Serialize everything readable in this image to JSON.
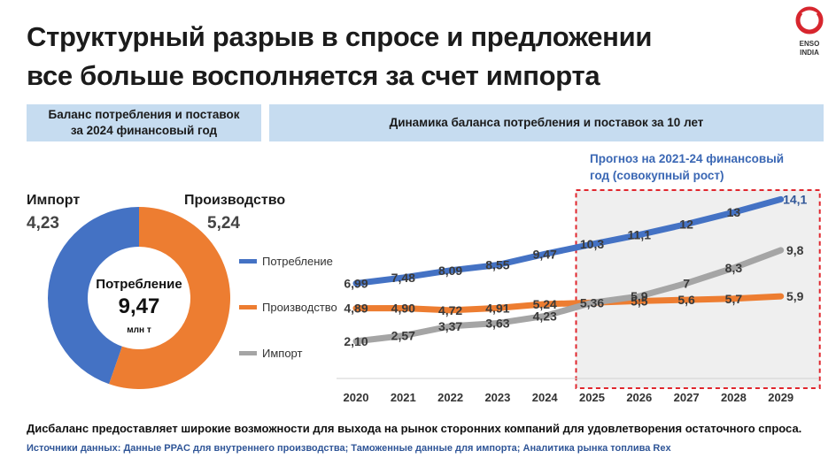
{
  "title_line1": "Структурный разрыв в спросе и предложении",
  "title_line2": "все больше восполняется за счет импорта",
  "logo": {
    "name": "ENSO",
    "sub": "INDIA",
    "color": "#d7262e"
  },
  "left_panel": {
    "header_line1": "Баланс потребления и поставок",
    "header_line2": "за 2024 финансовый год"
  },
  "right_panel": {
    "header": "Динамика баланса потребления и поставок за 10 лет"
  },
  "forecast_note_line1": "Прогноз на 2021-24 финансовый",
  "forecast_note_line2": "год (совокупный рост)",
  "footer": "Дисбаланс предоставляет широкие возможности для выхода на рынок сторонних компаний для удовлетворения остаточного спроса.",
  "sources": "Источники данных: Данные PPAC для внутреннего производства; Таможенные данные для импорта; Аналитика рынка топлива Rex",
  "colors": {
    "consumption": "#4472c4",
    "production": "#ed7d31",
    "import": "#a5a5a5",
    "header_bg": "#c6dcf0",
    "forecast_border": "#e0262d"
  },
  "chart_data": [
    {
      "type": "pie",
      "variant": "donut",
      "slices": [
        {
          "label": "Импорт",
          "value": 4.23,
          "value_label": "4,23",
          "color": "#4472c4"
        },
        {
          "label": "Производство",
          "value": 5.24,
          "value_label": "5,24",
          "color": "#ed7d31"
        }
      ],
      "center": {
        "title": "Потребление",
        "value": "9,47",
        "unit": "млн т"
      }
    },
    {
      "type": "line",
      "title": "Динамика баланса потребления и поставок за 10 лет",
      "categories": [
        "2020",
        "2021",
        "2022",
        "2023",
        "2024",
        "2025",
        "2026",
        "2027",
        "2028",
        "2029"
      ],
      "ylim": [
        0,
        16
      ],
      "forecast_from_index": 5,
      "series": [
        {
          "name": "Потребление",
          "color": "#4472c4",
          "values": [
            6.99,
            7.48,
            8.09,
            8.55,
            9.47,
            10.3,
            11.1,
            12,
            13,
            14.1
          ],
          "labels": [
            "6,99",
            "7,48",
            "8,09",
            "8,55",
            "9,47",
            "10,3",
            "11,1",
            "12",
            "13",
            "14,1"
          ]
        },
        {
          "name": "Производство",
          "color": "#ed7d31",
          "values": [
            4.89,
            4.9,
            4.72,
            4.91,
            5.24,
            5.36,
            5.5,
            5.6,
            5.7,
            5.9
          ],
          "labels": [
            "4,89",
            "4,90",
            "4,72",
            "4,91",
            "5,24",
            "5,36",
            "5,5",
            "5,6",
            "5,7",
            "5,9"
          ]
        },
        {
          "name": "Импорт",
          "color": "#a5a5a5",
          "values": [
            2.1,
            2.57,
            3.37,
            3.63,
            4.23,
            5.36,
            5.9,
            7,
            8.3,
            9.8
          ],
          "labels": [
            "2,10",
            "2,57",
            "3,37",
            "3,63",
            "4,23",
            "",
            "5,9",
            "7",
            "8,3",
            "9,8"
          ]
        }
      ]
    }
  ]
}
